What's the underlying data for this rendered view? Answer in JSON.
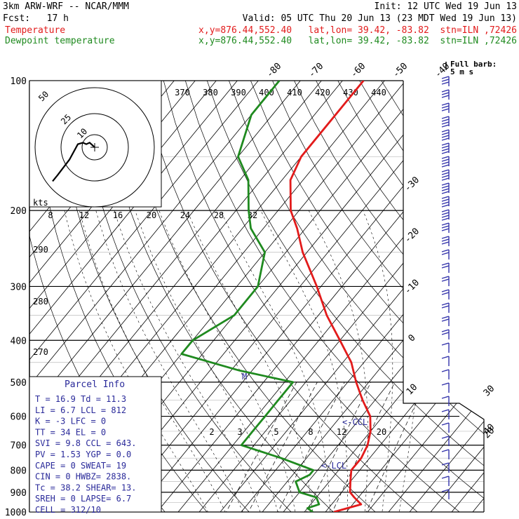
{
  "header": {
    "model": "3km ARW-WRF -- NCAR/MMM",
    "init": "Init: 12 UTC Wed 19 Jun 13",
    "fcst": "Fcst:   17 h",
    "valid": "Valid: 05 UTC Thu 20 Jun 13 (23 MDT Wed 19 Jun 13)",
    "temp_label": "Temperature",
    "dew_label": "Dewpoint temperature",
    "temp_loc": "x,y=876.44,552.40   lat,lon= 39.42, -83.82  stn=ILN ,72426",
    "dew_loc": "x,y=876.44,552.40   lat,lon= 39.42, -83.82  stn=ILN ,72426",
    "full_barb": "Full barb:",
    "full_barb_val": "5 m s"
  },
  "colors": {
    "temperature": "#e21b1b",
    "dewpoint": "#1f8a1f",
    "info": "#2a2a9a",
    "barb": "#3333aa"
  },
  "parcel": {
    "title": "Parcel Info",
    "rows": [
      "T   =  16.9  Td =  11.3",
      "LI  =   6.7  LCL =  812",
      "K   =   -3  LFC =    0",
      "TT  =   34  EL  =    0",
      "SVI =   9.8  CCL =  643.",
      "PV  =  1.53  YGP =  0.0",
      "CAPE =    0  SWEAT=  19",
      "CIN  =    0  HWBZ= 2838.",
      "Tc  =  38.2  SHEAR=  13.",
      "SREH =    0  LAPSE=  6.7",
      "CELL = 312/10"
    ]
  },
  "hodograph": {
    "label": "kts",
    "rings": [
      "50",
      "25",
      "10"
    ]
  },
  "markers": {
    "ccl": "<-CCL",
    "lcl": "<-LCL",
    "m": "M"
  },
  "chart_data": {
    "type": "skew-t",
    "y_axis": "pressure (hPa)",
    "pressure_ticks": [
      "100",
      "200",
      "300",
      "400",
      "500",
      "600",
      "700",
      "800",
      "900",
      "1000"
    ],
    "skewed_isotherm_labels": [
      "-80",
      "-70",
      "-60",
      "-50",
      "-40",
      "-30",
      "-20",
      "-10",
      "0",
      "10",
      "20",
      "30",
      "40"
    ],
    "theta_e_labels": [
      "370",
      "380",
      "390",
      "400",
      "410",
      "420",
      "430",
      "440"
    ],
    "mixing_ratio_top": [
      "8",
      "12",
      "16",
      "20",
      "24",
      "28",
      "32"
    ],
    "mixing_ratio_bottom": [
      "2",
      "3",
      "5",
      "8",
      "12",
      "20"
    ],
    "dry_adiabat_labels": [
      "290",
      "280",
      "270"
    ],
    "series": [
      {
        "name": "Temperature",
        "points": [
          [
            1000,
            17
          ],
          [
            960,
            22
          ],
          [
            925,
            19
          ],
          [
            900,
            17
          ],
          [
            850,
            15
          ],
          [
            800,
            13
          ],
          [
            750,
            13
          ],
          [
            700,
            12
          ],
          [
            650,
            10
          ],
          [
            600,
            7
          ],
          [
            550,
            2
          ],
          [
            500,
            -3
          ],
          [
            450,
            -8
          ],
          [
            400,
            -15
          ],
          [
            350,
            -23
          ],
          [
            300,
            -31
          ],
          [
            250,
            -41
          ],
          [
            220,
            -47
          ],
          [
            200,
            -52
          ],
          [
            170,
            -58
          ],
          [
            150,
            -60
          ],
          [
            120,
            -60
          ],
          [
            100,
            -60
          ]
        ]
      },
      {
        "name": "Dewpoint temperature",
        "points": [
          [
            1000,
            12
          ],
          [
            980,
            10
          ],
          [
            960,
            12
          ],
          [
            925,
            10
          ],
          [
            900,
            5
          ],
          [
            850,
            2
          ],
          [
            820,
            4
          ],
          [
            800,
            4
          ],
          [
            750,
            -6
          ],
          [
            700,
            -18
          ],
          [
            650,
            -18
          ],
          [
            600,
            -18
          ],
          [
            550,
            -18
          ],
          [
            500,
            -18
          ],
          [
            470,
            -33
          ],
          [
            430,
            -50
          ],
          [
            400,
            -50
          ],
          [
            350,
            -45
          ],
          [
            300,
            -45
          ],
          [
            250,
            -50
          ],
          [
            220,
            -58
          ],
          [
            200,
            -62
          ],
          [
            170,
            -68
          ],
          [
            150,
            -75
          ],
          [
            120,
            -80
          ],
          [
            100,
            -80
          ]
        ]
      }
    ],
    "wind_barbs_speed_ms": [
      15,
      15,
      15,
      20,
      20,
      20,
      20,
      20,
      20,
      20,
      20,
      15,
      15,
      10,
      10,
      10,
      10,
      10,
      10,
      10,
      5,
      5,
      5,
      5,
      5,
      5,
      5,
      5,
      5,
      5,
      5,
      5
    ],
    "hodograph_points_kts": [
      [
        -1,
        1
      ],
      [
        -2,
        2
      ],
      [
        -3,
        3
      ],
      [
        -5,
        2
      ],
      [
        -7,
        3
      ],
      [
        -10,
        2
      ],
      [
        -15,
        -8
      ],
      [
        -22,
        -18
      ],
      [
        -25,
        -22
      ]
    ]
  }
}
